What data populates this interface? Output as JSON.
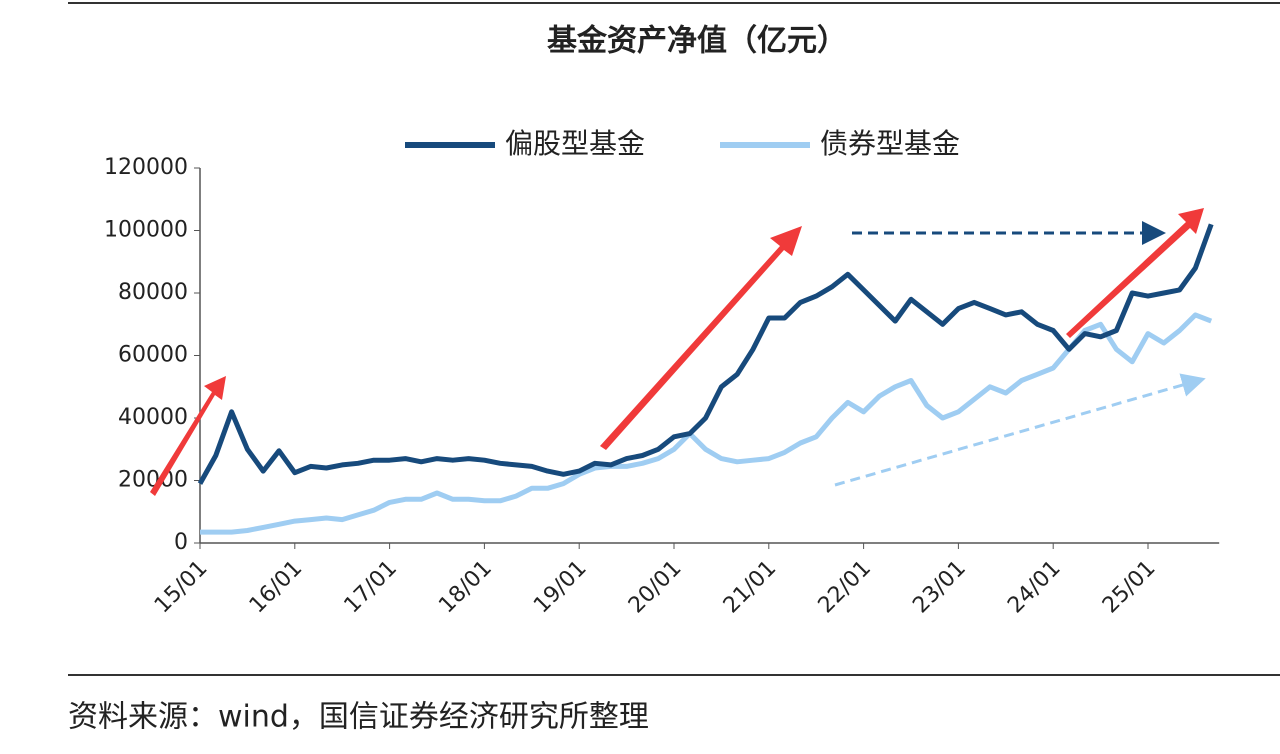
{
  "chart_data": {
    "type": "line",
    "title": "基金资产净值（亿元）",
    "categories": [
      "15/01",
      null,
      null,
      null,
      null,
      null,
      "16/01",
      null,
      null,
      null,
      null,
      null,
      "17/01",
      null,
      null,
      null,
      null,
      null,
      "18/01",
      null,
      null,
      null,
      null,
      null,
      "19/01",
      null,
      null,
      null,
      null,
      null,
      "20/01",
      null,
      null,
      null,
      null,
      null,
      "21/01",
      null,
      null,
      null,
      null,
      null,
      "22/01",
      null,
      null,
      null,
      null,
      null,
      "23/01",
      null,
      null,
      null,
      null,
      null,
      "24/01",
      null,
      null,
      null,
      null,
      null,
      "25/01",
      null,
      null,
      null,
      null
    ],
    "series": [
      {
        "name": "偏股型基金",
        "color": "#174a7c",
        "values": [
          19000,
          28000,
          42000,
          30000,
          23000,
          29500,
          22500,
          24500,
          24000,
          25000,
          25500,
          26500,
          26500,
          27000,
          26000,
          27000,
          26500,
          27000,
          26500,
          25500,
          25000,
          24500,
          23000,
          22000,
          23000,
          25500,
          25000,
          27000,
          28000,
          30000,
          34000,
          35000,
          40000,
          50000,
          54000,
          62000,
          72000,
          72000,
          77000,
          79000,
          82000,
          86000,
          81000,
          76000,
          71000,
          78000,
          74000,
          70000,
          75000,
          77000,
          75000,
          73000,
          74000,
          70000,
          68000,
          62000,
          67000,
          66000,
          68000,
          80000,
          79000,
          80000,
          81000,
          88000,
          102000
        ]
      },
      {
        "name": "债券型基金",
        "color": "#9fcdf2",
        "values": [
          3500,
          3500,
          3500,
          4000,
          5000,
          6000,
          7000,
          7500,
          8000,
          7500,
          9000,
          10500,
          13000,
          14000,
          14000,
          16000,
          14000,
          14000,
          13500,
          13500,
          15000,
          17500,
          17500,
          19000,
          22000,
          24000,
          24500,
          24500,
          25500,
          27000,
          30000,
          35000,
          30000,
          27000,
          26000,
          26500,
          27000,
          29000,
          32000,
          34000,
          40000,
          45000,
          42000,
          47000,
          50000,
          52000,
          44000,
          40000,
          42000,
          46000,
          50000,
          48000,
          52000,
          54000,
          56000,
          62000,
          68000,
          70000,
          62000,
          58000,
          67000,
          64000,
          68000,
          73000,
          71000
        ]
      }
    ],
    "ylim": [
      0,
      120000
    ],
    "yticks": [
      0,
      20000,
      40000,
      60000,
      80000,
      100000,
      120000
    ],
    "grid": false,
    "legend": "top"
  },
  "source": "资料来源：wind，国信证券经济研究所整理"
}
